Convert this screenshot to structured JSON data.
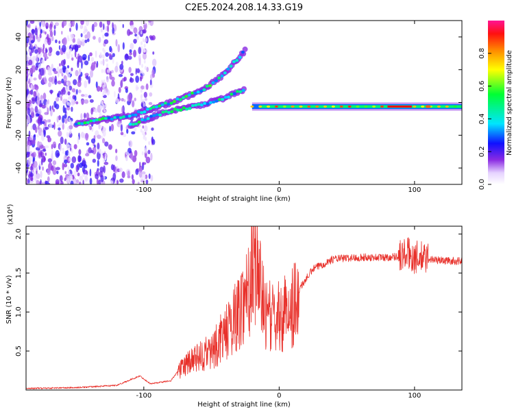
{
  "title": "C2E5.2024.208.14.33.G19",
  "chart_data": [
    {
      "type": "heatmap",
      "xlabel": "Height of straight line (km)",
      "ylabel": "Frequency (Hz)",
      "xlim": [
        -187,
        135
      ],
      "ylim": [
        -50,
        50
      ],
      "xticks": [
        -100,
        0,
        100
      ],
      "yticks": [
        -40,
        -20,
        0,
        20,
        40
      ],
      "colorbar": {
        "label": "Normalized spectral amplitude",
        "range": [
          0,
          1
        ],
        "ticks": [
          0.0,
          0.2,
          0.4,
          0.6,
          0.8
        ],
        "colormap": "rainbow",
        "position": "right"
      },
      "features": [
        {
          "name": "main-line",
          "freq_hz": -2.5,
          "x_range": [
            -20,
            135
          ]
        },
        {
          "name": "upper-branch",
          "points": [
            [
              -150,
              -13
            ],
            [
              -110,
              -8
            ],
            [
              -80,
              0
            ],
            [
              -55,
              8
            ],
            [
              -40,
              18
            ],
            [
              -25,
              32
            ]
          ]
        },
        {
          "name": "lower-branch",
          "points": [
            [
              -110,
              -14
            ],
            [
              -85,
              -6
            ],
            [
              -60,
              -2
            ],
            [
              -40,
              3
            ],
            [
              -25,
              8
            ]
          ]
        }
      ],
      "grid": false
    },
    {
      "type": "line",
      "xlabel": "Height of straight line (km)",
      "ylabel": "SNR (10 * v/v)",
      "yscale_label": "(x10⁴)",
      "xlim": [
        -187,
        135
      ],
      "ylim": [
        0,
        2.1
      ],
      "xticks": [
        -100,
        0,
        100
      ],
      "yticks": [
        0.5,
        1.0,
        1.5,
        2.0
      ],
      "color": "#e8302a",
      "envelope": [
        [
          -187,
          0.02
        ],
        [
          -150,
          0.03
        ],
        [
          -120,
          0.06
        ],
        [
          -103,
          0.18
        ],
        [
          -95,
          0.08
        ],
        [
          -80,
          0.12
        ],
        [
          -70,
          0.35
        ],
        [
          -60,
          0.45
        ],
        [
          -50,
          0.55
        ],
        [
          -40,
          0.8
        ],
        [
          -30,
          1.1
        ],
        [
          -22,
          1.5
        ],
        [
          -17,
          1.9
        ],
        [
          -12,
          1.2
        ],
        [
          -5,
          1.0
        ],
        [
          5,
          1.1
        ],
        [
          15,
          1.3
        ],
        [
          25,
          1.55
        ],
        [
          40,
          1.68
        ],
        [
          60,
          1.7
        ],
        [
          80,
          1.7
        ],
        [
          90,
          1.72
        ],
        [
          95,
          1.75
        ],
        [
          100,
          1.7
        ],
        [
          110,
          1.68
        ],
        [
          120,
          1.66
        ],
        [
          135,
          1.65
        ]
      ],
      "grid": false
    }
  ]
}
